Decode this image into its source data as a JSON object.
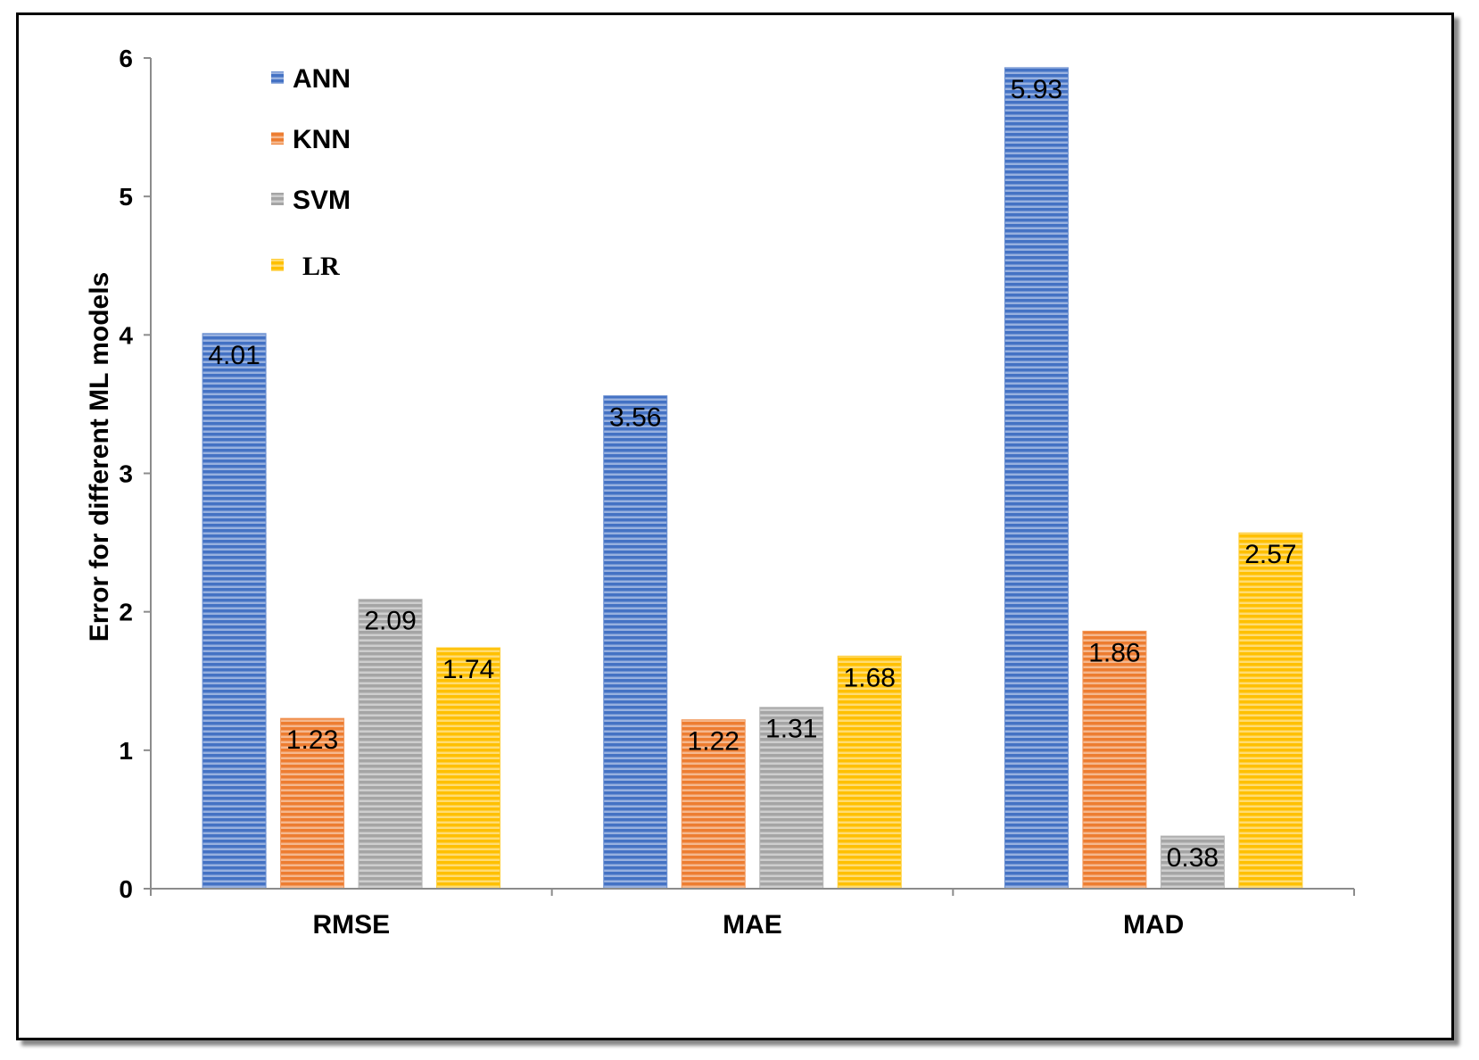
{
  "chart_data": {
    "type": "bar",
    "categories": [
      "RMSE",
      "MAE",
      "MAD"
    ],
    "series": [
      {
        "name": "ANN",
        "values": [
          4.01,
          3.56,
          5.93
        ],
        "color": "#4472C4"
      },
      {
        "name": "KNN",
        "values": [
          1.23,
          1.22,
          1.86
        ],
        "color": "#ED7D31"
      },
      {
        "name": "SVM",
        "values": [
          2.09,
          1.31,
          0.38
        ],
        "color": "#A5A5A5"
      },
      {
        "name": "LR",
        "values": [
          1.74,
          1.68,
          2.57
        ],
        "color": "#FFC000"
      }
    ],
    "data_labels": [
      [
        "4.01",
        "3.56",
        "5.93"
      ],
      [
        "1.23",
        "1.22",
        "1.86"
      ],
      [
        "2.09",
        "1.31",
        "0.38"
      ],
      [
        "1.74",
        "1.68",
        "2.57"
      ]
    ],
    "ylabel": "Error for different ML models",
    "xlabel": "",
    "ylim": [
      0,
      6
    ],
    "yticks": [
      "0",
      "1",
      "2",
      "3",
      "4",
      "5",
      "6"
    ],
    "grid": false,
    "legend_position": "top-left",
    "bar_pattern": "horizontal-stripes"
  }
}
